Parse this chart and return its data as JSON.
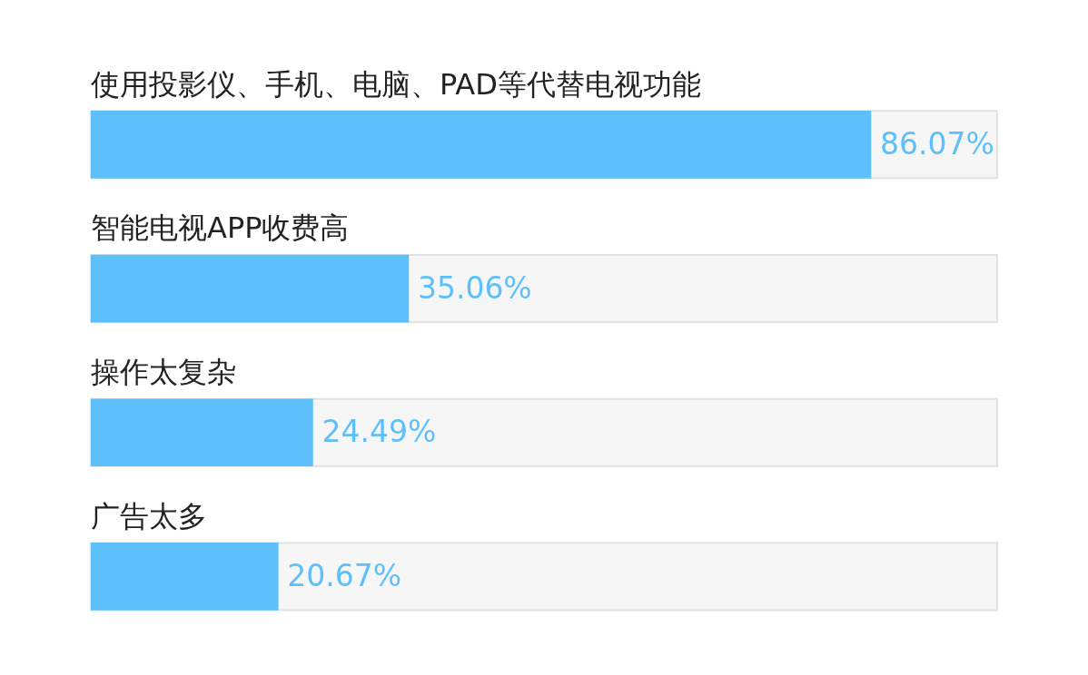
{
  "chart_data": {
    "type": "bar",
    "orientation": "horizontal",
    "categories": [
      "使用投影仪、手机、电脑、PAD等代替电视功能",
      "智能电视APP收费高",
      "操作太复杂",
      "广告太多"
    ],
    "values": [
      86.07,
      35.06,
      24.49,
      20.67
    ],
    "value_labels": [
      "86.07%",
      "35.06%",
      "24.49%",
      "20.67%"
    ],
    "color": "#5ec0fa",
    "xlim": [
      0,
      100
    ],
    "legend": false
  }
}
